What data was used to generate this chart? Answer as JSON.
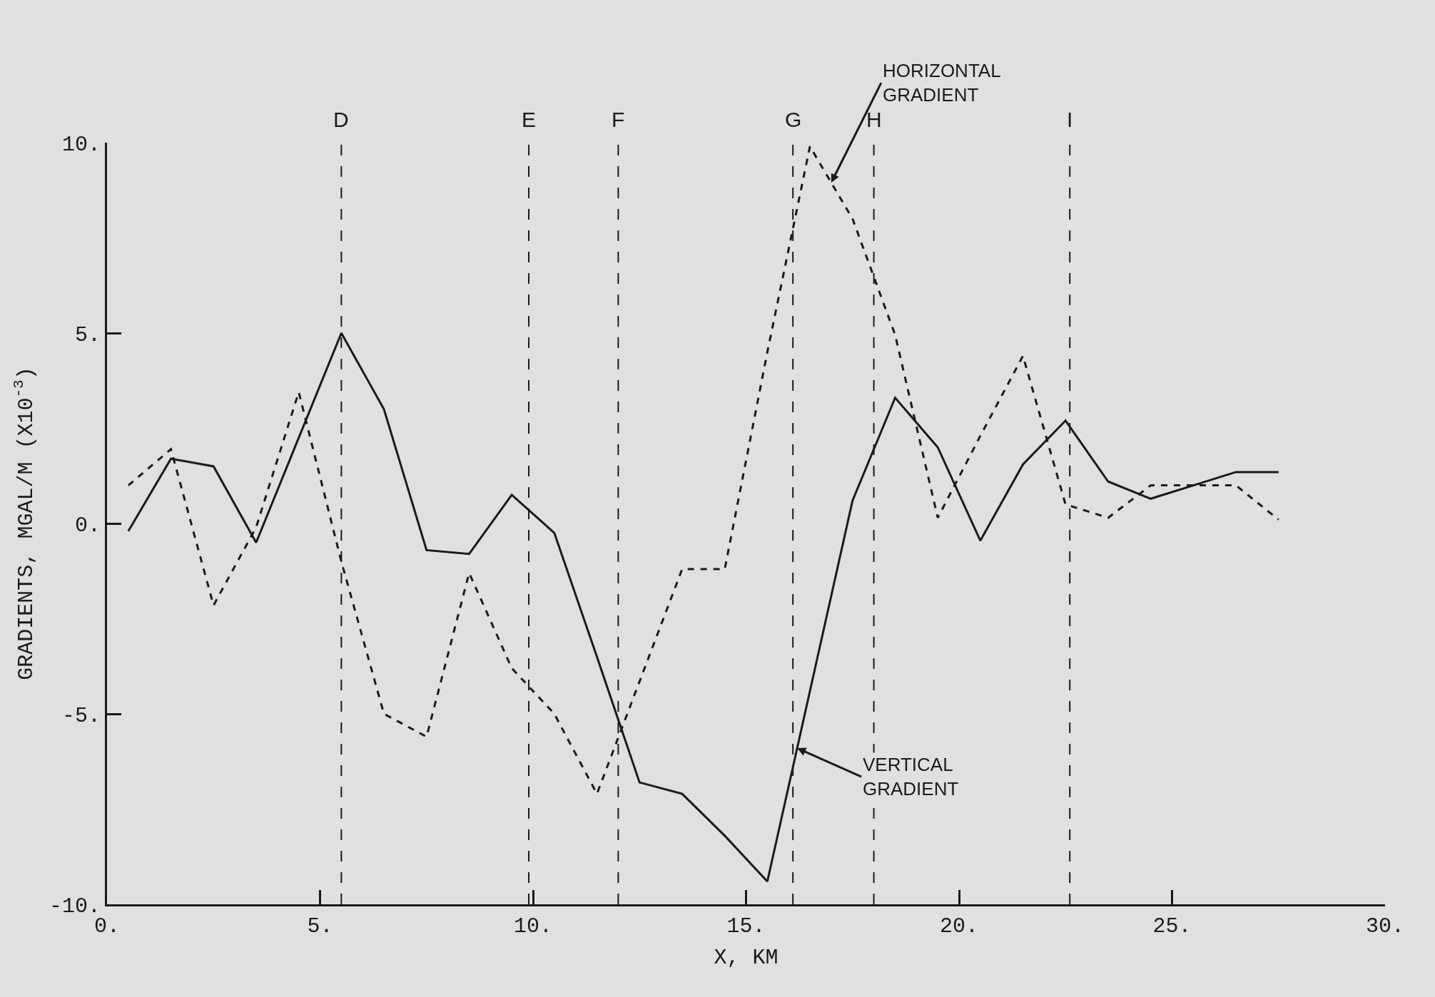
{
  "chart_data": {
    "type": "line",
    "xlabel": "X, KM",
    "ylabel": "GRADIENTS, MGAL/M (X10$^{-3}$)",
    "x": [
      0.5,
      1.5,
      2.5,
      3.5,
      4.5,
      5.5,
      6.5,
      7.5,
      8.5,
      9.5,
      10.5,
      11.5,
      12.5,
      13.5,
      14.5,
      15.5,
      16.5,
      17.5,
      18.5,
      19.5,
      20.5,
      21.5,
      22.5,
      23.5,
      24.5,
      25.5,
      26.5,
      27.5
    ],
    "series": [
      {
        "color": "#1a1a1a",
        "line_style": "solid",
        "values": [
          -0.2,
          1.7,
          1.5,
          -0.5,
          2.25,
          5.0,
          3.0,
          -0.7,
          -0.8,
          0.75,
          -0.25,
          -3.5,
          -6.8,
          -7.1,
          -8.2,
          -9.4,
          -4.4,
          0.6,
          3.3,
          2.0,
          -0.45,
          1.55,
          2.7,
          1.1,
          0.65,
          1.0,
          1.35,
          1.35
        ]
      },
      {
        "color": "#1a1a1a",
        "line_style": "dashed",
        "values": [
          1.0,
          1.95,
          -2.15,
          -0.1,
          3.45,
          -1.0,
          -5.0,
          -5.6,
          -1.3,
          -3.8,
          -5.0,
          -7.1,
          -4.15,
          -1.2,
          -1.2,
          4.5,
          9.9,
          8.0,
          4.95,
          0.15,
          2.3,
          4.4,
          0.5,
          0.15,
          1.0,
          1.0,
          1.0,
          0.1
        ]
      }
    ],
    "xlim": [
      0,
      30
    ],
    "xticks": [
      {
        "value": 0,
        "label": "0."
      },
      {
        "value": 5,
        "label": "5."
      },
      {
        "value": 10,
        "label": "10."
      },
      {
        "value": 15,
        "label": "15."
      },
      {
        "value": 20,
        "label": "20."
      },
      {
        "value": 25,
        "label": "25."
      },
      {
        "value": 30,
        "label": "30."
      }
    ],
    "ylim": [
      -10,
      10
    ],
    "yticks": [
      {
        "value": -10,
        "label": "-10."
      },
      {
        "value": -5,
        "label": "-5."
      },
      {
        "value": 0,
        "label": "0."
      },
      {
        "value": 5,
        "label": "5."
      },
      {
        "value": 10,
        "label": "10."
      }
    ],
    "ref_lines": [
      {
        "axis": "x",
        "value": 5.5,
        "label": "D",
        "line_style": "dashed"
      },
      {
        "axis": "x",
        "value": 9.9,
        "label": "E",
        "line_style": "dashed"
      },
      {
        "axis": "x",
        "value": 12.0,
        "label": "F",
        "line_style": "dashed"
      },
      {
        "axis": "x",
        "value": 16.1,
        "label": "G",
        "line_style": "dashed"
      },
      {
        "axis": "x",
        "value": 18.0,
        "label": "H",
        "line_style": "dashed"
      },
      {
        "axis": "x",
        "value": 22.6,
        "label": "I",
        "line_style": "dashed"
      }
    ],
    "annotations": [
      {
        "text": "HORIZONTAL\nGRADIENT",
        "x": 17.0,
        "y": 8.95
      },
      {
        "text": "VERTICAL\nGRADIENT",
        "x": 16.2,
        "y": -5.9
      }
    ],
    "grid": false,
    "marker": "none"
  }
}
